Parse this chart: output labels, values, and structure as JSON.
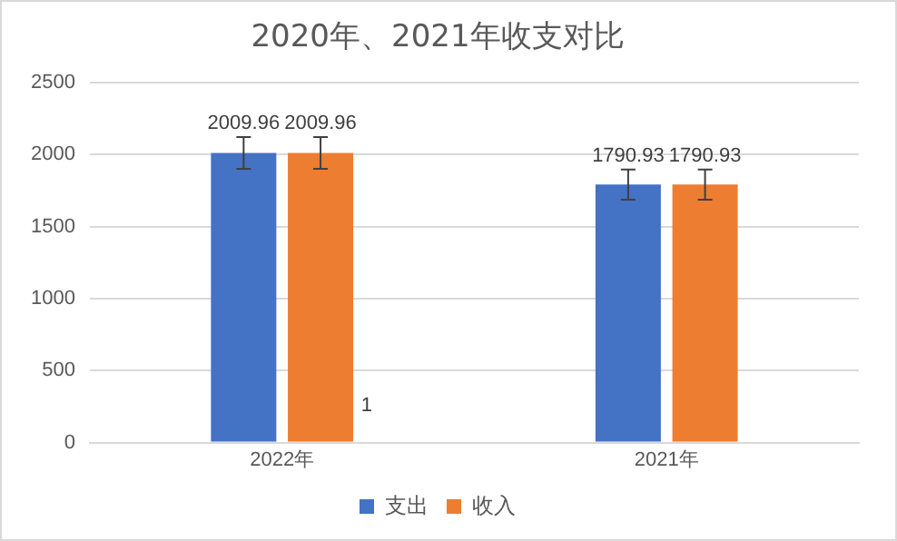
{
  "chart_data": {
    "type": "bar",
    "title": "2020年、2021年收支对比",
    "categories": [
      "2022年",
      "2021年"
    ],
    "series": [
      {
        "name": "支出",
        "color": "#4472c4",
        "values": [
          2009.96,
          1790.93
        ],
        "errors": [
          110,
          105
        ]
      },
      {
        "name": "收入",
        "color": "#ed7d31",
        "values": [
          2009.96,
          1790.93
        ],
        "errors": [
          110,
          105
        ]
      }
    ],
    "ylim": [
      0,
      2500
    ],
    "yticks": [
      0,
      500,
      1000,
      1500,
      2000,
      2500
    ],
    "grid": "y",
    "legend": "bottom",
    "data_labels": true,
    "annotations": [
      "1"
    ]
  }
}
